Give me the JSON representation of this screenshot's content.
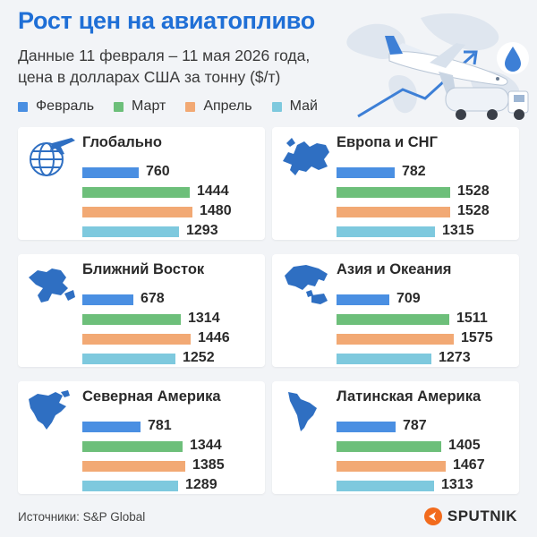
{
  "header": {
    "title": "Рост цен на авиатопливо",
    "subtitle": "Данные 11 февраля – 11 мая 2026 года, цена в долларах США за тонну ($/т)"
  },
  "legend": [
    {
      "label": "Февраль",
      "color": "#4a8fe2"
    },
    {
      "label": "Март",
      "color": "#6dbf7a"
    },
    {
      "label": "Апрель",
      "color": "#f2a974"
    },
    {
      "label": "Май",
      "color": "#7ec9de"
    }
  ],
  "chart_data": {
    "type": "bar",
    "orientation": "horizontal",
    "title": "Рост цен на авиатопливо",
    "unit": "$/т",
    "series_names": [
      "Февраль",
      "Март",
      "Апрель",
      "Май"
    ],
    "panels": [
      {
        "region": "Глобально",
        "icon": "globe-plane-icon",
        "values": [
          760,
          1444,
          1480,
          1293
        ]
      },
      {
        "region": "Европа и СНГ",
        "icon": "europe-map-icon",
        "values": [
          782,
          1528,
          1528,
          1315
        ]
      },
      {
        "region": "Ближний Восток",
        "icon": "middle-east-map-icon",
        "values": [
          678,
          1314,
          1446,
          1252
        ]
      },
      {
        "region": "Азия и Океания",
        "icon": "asia-oceania-map-icon",
        "values": [
          709,
          1511,
          1575,
          1273
        ]
      },
      {
        "region": "Северная Америка",
        "icon": "north-america-map-icon",
        "values": [
          781,
          1344,
          1385,
          1289
        ]
      },
      {
        "region": "Латинская Америка",
        "icon": "latin-america-map-icon",
        "values": [
          787,
          1405,
          1467,
          1313
        ]
      }
    ],
    "xlim": [
      0,
      1800
    ],
    "grid": false,
    "legend_position": "top"
  },
  "footer": {
    "source": "Источники: S&P Global",
    "brand": "SPUTNIK"
  },
  "hero": {
    "icons": [
      "world-map-icon",
      "airplane-icon",
      "fuel-truck-icon",
      "drop-icon",
      "arrow-up-icon"
    ]
  }
}
